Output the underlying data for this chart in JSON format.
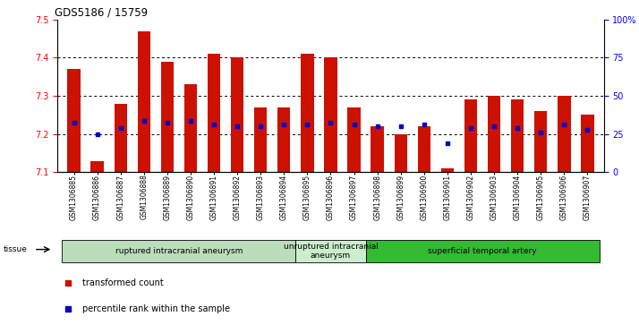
{
  "title": "GDS5186 / 15759",
  "samples": [
    "GSM1306885",
    "GSM1306886",
    "GSM1306887",
    "GSM1306888",
    "GSM1306889",
    "GSM1306890",
    "GSM1306891",
    "GSM1306892",
    "GSM1306893",
    "GSM1306894",
    "GSM1306895",
    "GSM1306896",
    "GSM1306897",
    "GSM1306898",
    "GSM1306899",
    "GSM1306900",
    "GSM1306901",
    "GSM1306902",
    "GSM1306903",
    "GSM1306904",
    "GSM1306905",
    "GSM1306906",
    "GSM1306907"
  ],
  "bar_values": [
    7.37,
    7.13,
    7.28,
    7.47,
    7.39,
    7.33,
    7.41,
    7.4,
    7.27,
    7.27,
    7.41,
    7.4,
    7.27,
    7.22,
    7.2,
    7.22,
    7.11,
    7.29,
    7.3,
    7.29,
    7.26,
    7.3,
    7.25
  ],
  "percentile_values": [
    7.23,
    7.2,
    7.215,
    7.235,
    7.23,
    7.235,
    7.225,
    7.22,
    7.22,
    7.225,
    7.225,
    7.23,
    7.225,
    7.22,
    7.22,
    7.225,
    7.175,
    7.215,
    7.22,
    7.215,
    7.205,
    7.225,
    7.21
  ],
  "ymin": 7.1,
  "ymax": 7.5,
  "bar_color": "#cc1100",
  "dot_color": "#0000cc",
  "groups": [
    {
      "label": "ruptured intracranial aneurysm",
      "start": 0,
      "end": 10,
      "color": "#bbddbb"
    },
    {
      "label": "unruptured intracranial\naneurysm",
      "start": 10,
      "end": 13,
      "color": "#cceecc"
    },
    {
      "label": "superficial temporal artery",
      "start": 13,
      "end": 23,
      "color": "#33bb33"
    }
  ],
  "yticks_left": [
    7.1,
    7.2,
    7.3,
    7.4,
    7.5
  ],
  "yticks_right": [
    0,
    25,
    50,
    75,
    100
  ],
  "grid_lines": [
    7.2,
    7.3,
    7.4
  ]
}
